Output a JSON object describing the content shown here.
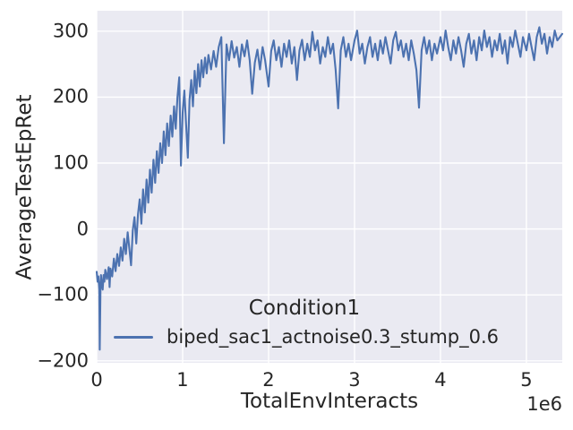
{
  "colors": {
    "figure_bg": "#ffffff",
    "axes_bg": "#eaeaf2",
    "grid": "#ffffff",
    "text": "#262626",
    "line": "#4c72b0"
  },
  "chart_data": {
    "type": "line",
    "title": "",
    "xlabel": "TotalEnvInteracts",
    "ylabel": "AverageTestEpRet",
    "x_offset_label": "1e6",
    "grid": true,
    "xlim": [
      0,
      5417000
    ],
    "ylim": [
      -203,
      331
    ],
    "xticks": {
      "values": [
        0,
        1000000,
        2000000,
        3000000,
        4000000,
        5000000
      ],
      "labels": [
        "0",
        "1",
        "2",
        "3",
        "4",
        "5"
      ]
    },
    "yticks": {
      "values": [
        -200,
        -100,
        0,
        100,
        200,
        300
      ],
      "labels": [
        "−200",
        "−100",
        "0",
        "100",
        "200",
        "300"
      ]
    },
    "legend": {
      "title": "Condition1",
      "position": "lower center",
      "entries": [
        {
          "label": "biped_sac1_actnoise0.3_stump_0.6",
          "color": "#4c72b0"
        }
      ]
    },
    "series": [
      {
        "name": "biped_sac1_actnoise0.3_stump_0.6",
        "color": "#4c72b0",
        "x_unit": 1000000,
        "points": [
          [
            0.0,
            -65
          ],
          [
            0.01,
            -80
          ],
          [
            0.02,
            -72
          ],
          [
            0.03,
            -92
          ],
          [
            0.035,
            -183
          ],
          [
            0.045,
            -85
          ],
          [
            0.05,
            -70
          ],
          [
            0.06,
            -86
          ],
          [
            0.07,
            -92
          ],
          [
            0.08,
            -70
          ],
          [
            0.09,
            -80
          ],
          [
            0.1,
            -62
          ],
          [
            0.12,
            -76
          ],
          [
            0.14,
            -58
          ],
          [
            0.15,
            -88
          ],
          [
            0.16,
            -60
          ],
          [
            0.18,
            -72
          ],
          [
            0.2,
            -45
          ],
          [
            0.22,
            -64
          ],
          [
            0.24,
            -38
          ],
          [
            0.26,
            -56
          ],
          [
            0.28,
            -28
          ],
          [
            0.3,
            -48
          ],
          [
            0.32,
            -15
          ],
          [
            0.34,
            -38
          ],
          [
            0.36,
            -5
          ],
          [
            0.38,
            -30
          ],
          [
            0.4,
            -55
          ],
          [
            0.42,
            -2
          ],
          [
            0.44,
            18
          ],
          [
            0.46,
            -22
          ],
          [
            0.48,
            22
          ],
          [
            0.5,
            45
          ],
          [
            0.52,
            8
          ],
          [
            0.54,
            60
          ],
          [
            0.56,
            25
          ],
          [
            0.58,
            75
          ],
          [
            0.6,
            40
          ],
          [
            0.62,
            90
          ],
          [
            0.64,
            55
          ],
          [
            0.66,
            105
          ],
          [
            0.68,
            70
          ],
          [
            0.7,
            118
          ],
          [
            0.72,
            85
          ],
          [
            0.74,
            130
          ],
          [
            0.76,
            100
          ],
          [
            0.78,
            148
          ],
          [
            0.8,
            112
          ],
          [
            0.82,
            160
          ],
          [
            0.84,
            126
          ],
          [
            0.86,
            172
          ],
          [
            0.88,
            140
          ],
          [
            0.9,
            186
          ],
          [
            0.92,
            152
          ],
          [
            0.94,
            200
          ],
          [
            0.96,
            230
          ],
          [
            0.98,
            96
          ],
          [
            1.0,
            176
          ],
          [
            1.02,
            210
          ],
          [
            1.04,
            160
          ],
          [
            1.06,
            108
          ],
          [
            1.08,
            196
          ],
          [
            1.1,
            226
          ],
          [
            1.12,
            186
          ],
          [
            1.14,
            240
          ],
          [
            1.16,
            206
          ],
          [
            1.18,
            250
          ],
          [
            1.2,
            216
          ],
          [
            1.22,
            256
          ],
          [
            1.24,
            230
          ],
          [
            1.26,
            260
          ],
          [
            1.28,
            236
          ],
          [
            1.3,
            264
          ],
          [
            1.33,
            242
          ],
          [
            1.36,
            270
          ],
          [
            1.39,
            246
          ],
          [
            1.42,
            276
          ],
          [
            1.45,
            291
          ],
          [
            1.48,
            130
          ],
          [
            1.51,
            280
          ],
          [
            1.54,
            256
          ],
          [
            1.57,
            285
          ],
          [
            1.6,
            260
          ],
          [
            1.63,
            276
          ],
          [
            1.66,
            246
          ],
          [
            1.69,
            280
          ],
          [
            1.72,
            262
          ],
          [
            1.75,
            286
          ],
          [
            1.78,
            256
          ],
          [
            1.81,
            205
          ],
          [
            1.84,
            252
          ],
          [
            1.87,
            272
          ],
          [
            1.9,
            242
          ],
          [
            1.93,
            276
          ],
          [
            1.96,
            256
          ],
          [
            2.0,
            216
          ],
          [
            2.03,
            270
          ],
          [
            2.06,
            286
          ],
          [
            2.09,
            256
          ],
          [
            2.12,
            276
          ],
          [
            2.15,
            246
          ],
          [
            2.18,
            281
          ],
          [
            2.21,
            261
          ],
          [
            2.24,
            286
          ],
          [
            2.27,
            251
          ],
          [
            2.3,
            276
          ],
          [
            2.33,
            226
          ],
          [
            2.36,
            271
          ],
          [
            2.39,
            287
          ],
          [
            2.42,
            256
          ],
          [
            2.45,
            281
          ],
          [
            2.48,
            261
          ],
          [
            2.51,
            299
          ],
          [
            2.54,
            271
          ],
          [
            2.57,
            286
          ],
          [
            2.6,
            251
          ],
          [
            2.63,
            276
          ],
          [
            2.66,
            261
          ],
          [
            2.69,
            291
          ],
          [
            2.72,
            266
          ],
          [
            2.75,
            281
          ],
          [
            2.78,
            241
          ],
          [
            2.81,
            183
          ],
          [
            2.84,
            271
          ],
          [
            2.87,
            291
          ],
          [
            2.9,
            261
          ],
          [
            2.93,
            281
          ],
          [
            2.96,
            256
          ],
          [
            3.0,
            286
          ],
          [
            3.03,
            301
          ],
          [
            3.06,
            266
          ],
          [
            3.09,
            281
          ],
          [
            3.12,
            251
          ],
          [
            3.15,
            276
          ],
          [
            3.18,
            291
          ],
          [
            3.21,
            261
          ],
          [
            3.24,
            281
          ],
          [
            3.27,
            256
          ],
          [
            3.3,
            286
          ],
          [
            3.33,
            266
          ],
          [
            3.36,
            291
          ],
          [
            3.39,
            271
          ],
          [
            3.42,
            251
          ],
          [
            3.45,
            286
          ],
          [
            3.48,
            299
          ],
          [
            3.51,
            271
          ],
          [
            3.54,
            286
          ],
          [
            3.57,
            261
          ],
          [
            3.6,
            281
          ],
          [
            3.63,
            256
          ],
          [
            3.66,
            286
          ],
          [
            3.69,
            266
          ],
          [
            3.72,
            241
          ],
          [
            3.75,
            184
          ],
          [
            3.78,
            271
          ],
          [
            3.81,
            291
          ],
          [
            3.84,
            266
          ],
          [
            3.87,
            286
          ],
          [
            3.9,
            256
          ],
          [
            3.93,
            281
          ],
          [
            3.96,
            266
          ],
          [
            4.0,
            291
          ],
          [
            4.03,
            271
          ],
          [
            4.06,
            301
          ],
          [
            4.09,
            276
          ],
          [
            4.12,
            256
          ],
          [
            4.15,
            286
          ],
          [
            4.18,
            266
          ],
          [
            4.21,
            291
          ],
          [
            4.24,
            271
          ],
          [
            4.27,
            246
          ],
          [
            4.3,
            281
          ],
          [
            4.33,
            296
          ],
          [
            4.36,
            266
          ],
          [
            4.39,
            286
          ],
          [
            4.42,
            256
          ],
          [
            4.45,
            291
          ],
          [
            4.48,
            271
          ],
          [
            4.51,
            301
          ],
          [
            4.54,
            276
          ],
          [
            4.57,
            291
          ],
          [
            4.6,
            261
          ],
          [
            4.63,
            286
          ],
          [
            4.66,
            271
          ],
          [
            4.69,
            296
          ],
          [
            4.72,
            266
          ],
          [
            4.75,
            286
          ],
          [
            4.78,
            251
          ],
          [
            4.81,
            291
          ],
          [
            4.84,
            276
          ],
          [
            4.87,
            301
          ],
          [
            4.9,
            281
          ],
          [
            4.93,
            261
          ],
          [
            4.96,
            291
          ],
          [
            5.0,
            271
          ],
          [
            5.03,
            296
          ],
          [
            5.06,
            276
          ],
          [
            5.09,
            256
          ],
          [
            5.12,
            291
          ],
          [
            5.15,
            306
          ],
          [
            5.18,
            281
          ],
          [
            5.21,
            296
          ],
          [
            5.24,
            266
          ],
          [
            5.27,
            291
          ],
          [
            5.3,
            276
          ],
          [
            5.33,
            301
          ],
          [
            5.36,
            286
          ],
          [
            5.417,
            296
          ]
        ]
      }
    ]
  }
}
